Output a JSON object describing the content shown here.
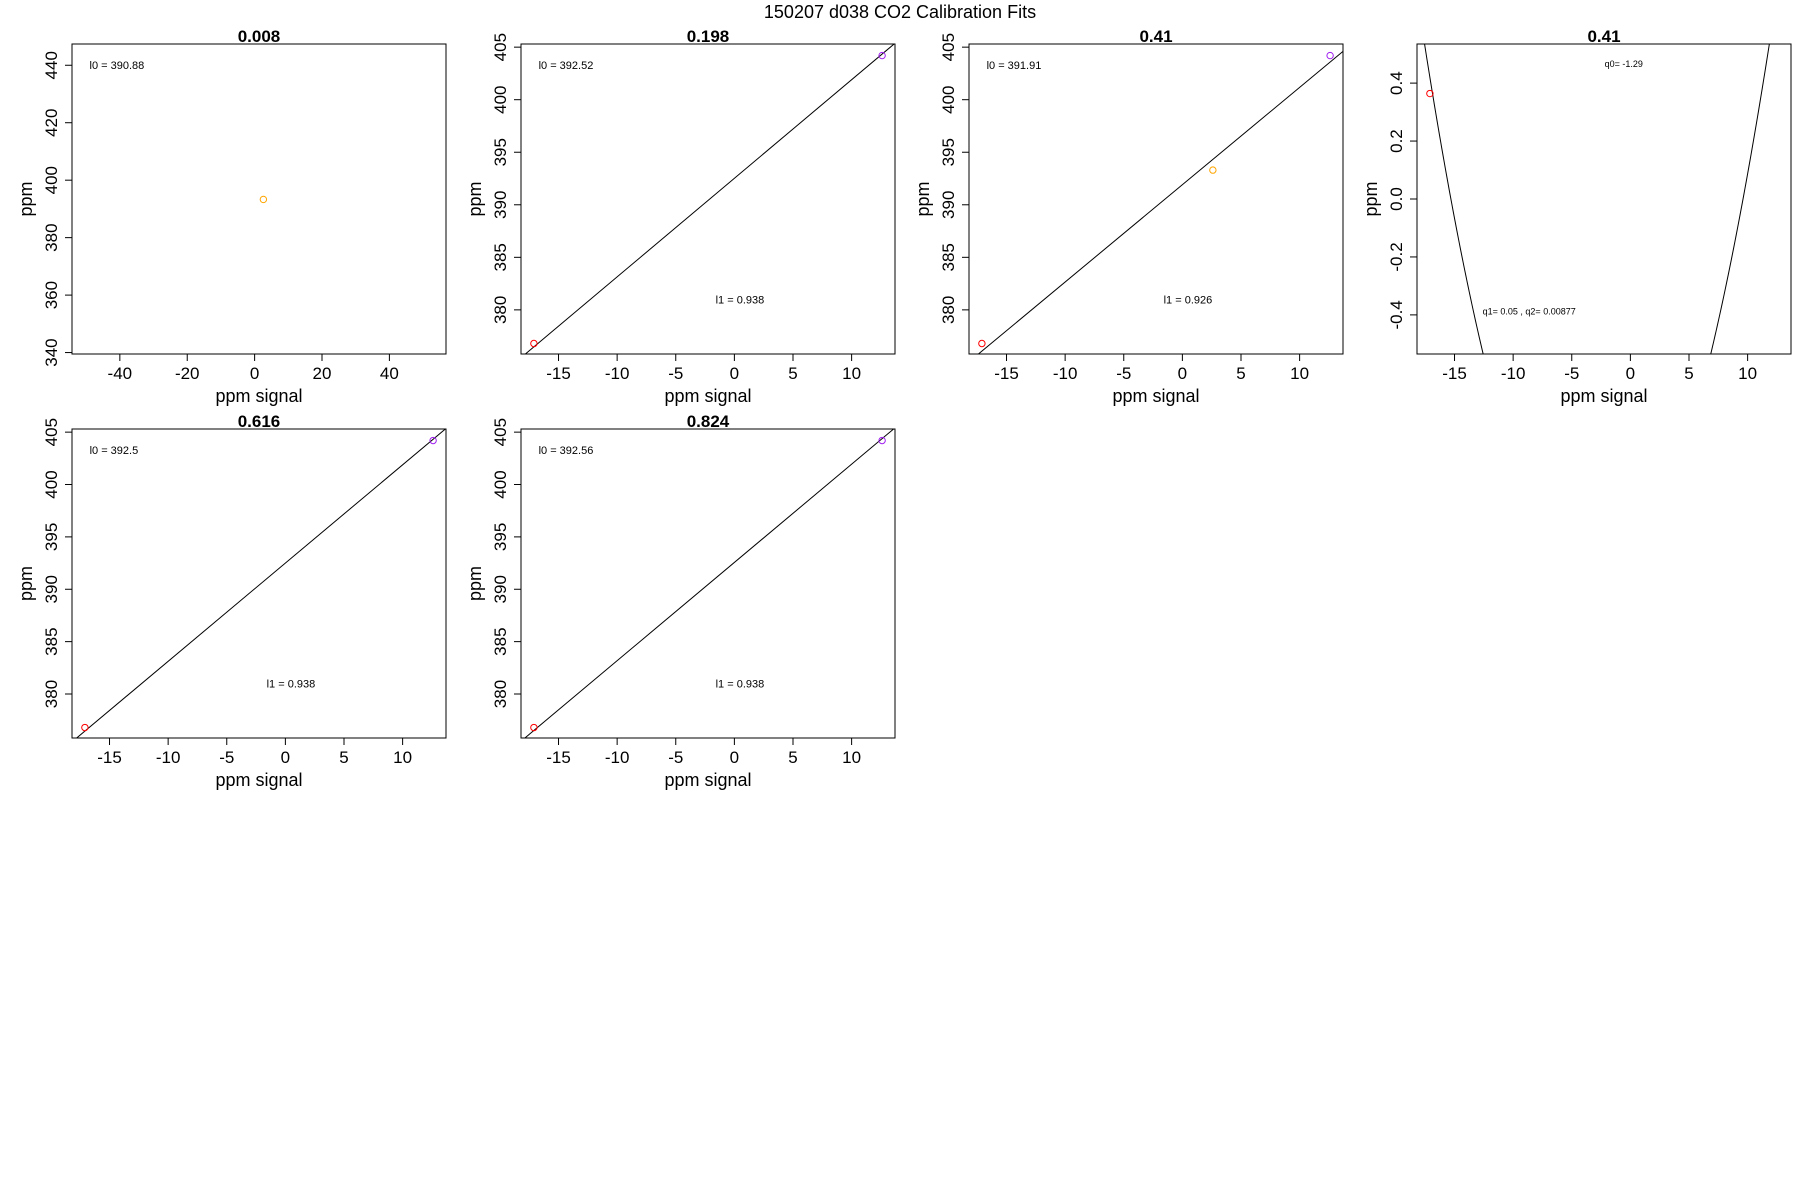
{
  "figure": {
    "title": "150207   d038   CO2 Calibration Fits"
  },
  "chart_data": [
    {
      "type": "scatter",
      "title": "0.008",
      "xlabel": "ppm signal",
      "ylabel": "ppm",
      "xlim": [
        -54.2,
        56.8
      ],
      "ylim": [
        339.5,
        447.4
      ],
      "xticks": [
        -40,
        -20,
        0,
        20,
        40
      ],
      "yticks": [
        340,
        360,
        380,
        400,
        420,
        440
      ],
      "points": [
        {
          "x": 2.6,
          "y": 393.3,
          "color": "#FFA500"
        }
      ],
      "annotations": [
        {
          "text": "l0 =  390.88",
          "x": -49,
          "y": 440.1
        }
      ]
    },
    {
      "type": "scatter",
      "title": "0.198",
      "xlabel": "ppm signal",
      "ylabel": "ppm",
      "xlim": [
        -18.2,
        13.7
      ],
      "ylim": [
        375.8,
        405.3
      ],
      "xticks": [
        -15,
        -10,
        -5,
        0,
        5,
        10
      ],
      "yticks": [
        380,
        385,
        390,
        395,
        400,
        405
      ],
      "line": {
        "intercept": 392.52,
        "slope": 0.938
      },
      "points": [
        {
          "x": -17.1,
          "y": 376.8,
          "color": "#FF0000"
        },
        {
          "x": 12.6,
          "y": 404.2,
          "color": "#A020F0"
        }
      ],
      "annotations": [
        {
          "text": "l0 =  392.52",
          "x": -16.7,
          "y": 403.3
        },
        {
          "text": "l1 =  0.938",
          "x": -1.6,
          "y": 381
        }
      ]
    },
    {
      "type": "scatter",
      "title": "0.41",
      "xlabel": "ppm signal",
      "ylabel": "ppm",
      "xlim": [
        -18.2,
        13.7
      ],
      "ylim": [
        375.8,
        405.3
      ],
      "xticks": [
        -15,
        -10,
        -5,
        0,
        5,
        10
      ],
      "yticks": [
        380,
        385,
        390,
        395,
        400,
        405
      ],
      "line": {
        "intercept": 391.91,
        "slope": 0.926
      },
      "points": [
        {
          "x": -17.1,
          "y": 376.8,
          "color": "#FF0000"
        },
        {
          "x": 2.6,
          "y": 393.3,
          "color": "#FFA500"
        },
        {
          "x": 12.6,
          "y": 404.2,
          "color": "#A020F0"
        }
      ],
      "annotations": [
        {
          "text": "l0 =  391.91",
          "x": -16.7,
          "y": 403.3
        },
        {
          "text": "l1 =  0.926",
          "x": -1.6,
          "y": 381
        }
      ]
    },
    {
      "type": "line",
      "title": "0.41",
      "xlabel": "ppm signal",
      "ylabel": "ppm",
      "xlim": [
        -18.2,
        13.7
      ],
      "ylim": [
        -0.535,
        0.535
      ],
      "xticks": [
        -15,
        -10,
        -5,
        0,
        5,
        10
      ],
      "yticks": [
        -0.4,
        -0.2,
        0.0,
        0.2,
        0.4
      ],
      "quadratic": {
        "q0": -1.29,
        "q1": 0.05,
        "q2": 0.00877
      },
      "points": [
        {
          "x": -17.1,
          "y": 0.364,
          "color": "#FF0000"
        }
      ],
      "annotations": [
        {
          "text": "q0= -1.29",
          "x": -2.2,
          "y": 0.47,
          "small": true
        },
        {
          "text": "q1= 0.05 , q2= 0.00877",
          "x": -12.6,
          "y": -0.385,
          "small": true
        }
      ]
    },
    {
      "type": "scatter",
      "title": "0.616",
      "xlabel": "ppm signal",
      "ylabel": "ppm",
      "xlim": [
        -18.2,
        13.7
      ],
      "ylim": [
        375.8,
        405.3
      ],
      "xticks": [
        -15,
        -10,
        -5,
        0,
        5,
        10
      ],
      "yticks": [
        380,
        385,
        390,
        395,
        400,
        405
      ],
      "line": {
        "intercept": 392.5,
        "slope": 0.938
      },
      "points": [
        {
          "x": -17.1,
          "y": 376.8,
          "color": "#FF0000"
        },
        {
          "x": 12.6,
          "y": 404.2,
          "color": "#A020F0"
        }
      ],
      "annotations": [
        {
          "text": "l0 =  392.5",
          "x": -16.7,
          "y": 403.3
        },
        {
          "text": "l1 =  0.938",
          "x": -1.6,
          "y": 381
        }
      ]
    },
    {
      "type": "scatter",
      "title": "0.824",
      "xlabel": "ppm signal",
      "ylabel": "ppm",
      "xlim": [
        -18.2,
        13.7
      ],
      "ylim": [
        375.8,
        405.3
      ],
      "xticks": [
        -15,
        -10,
        -5,
        0,
        5,
        10
      ],
      "yticks": [
        380,
        385,
        390,
        395,
        400,
        405
      ],
      "line": {
        "intercept": 392.56,
        "slope": 0.938
      },
      "points": [
        {
          "x": -17.1,
          "y": 376.8,
          "color": "#FF0000"
        },
        {
          "x": 12.6,
          "y": 404.2,
          "color": "#A020F0"
        }
      ],
      "annotations": [
        {
          "text": "l0 =  392.56",
          "x": -16.7,
          "y": 403.3
        },
        {
          "text": "l1 =  0.938",
          "x": -1.6,
          "y": 381
        }
      ]
    }
  ]
}
